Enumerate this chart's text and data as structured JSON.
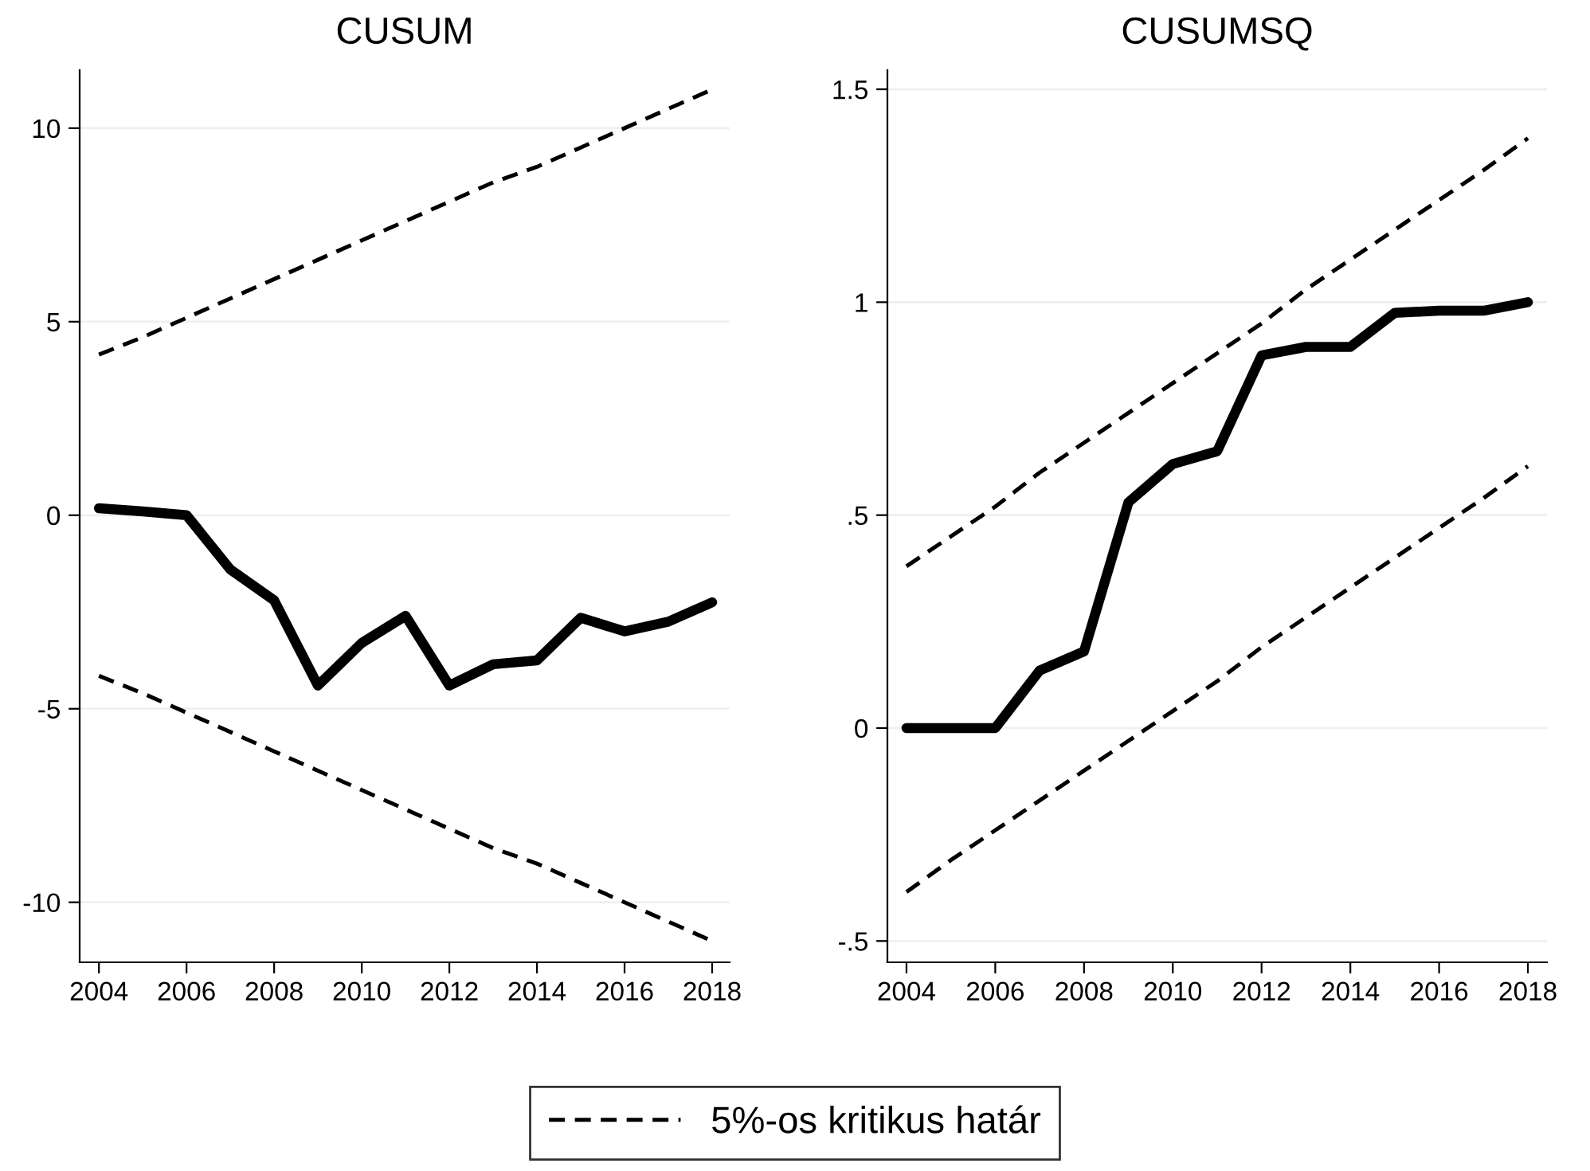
{
  "chart_data": [
    {
      "type": "line",
      "title": "CUSUM",
      "x": [
        2004,
        2005,
        2006,
        2007,
        2008,
        2009,
        2010,
        2011,
        2012,
        2013,
        2014,
        2015,
        2016,
        2017,
        2018
      ],
      "series": [
        {
          "values": [
            0.18,
            0.1,
            0,
            -1.4,
            -2.2,
            -4.4,
            -3.3,
            -2.6,
            -4.4,
            -3.85,
            -3.75,
            -2.65,
            -3.0,
            -2.75,
            -2.25
          ],
          "color": "#000000",
          "line_style": "solid"
        },
        {
          "name": "5%-os kritikus határ",
          "values": [
            4.15,
            4.6,
            5.1,
            5.6,
            6.1,
            6.6,
            7.1,
            7.6,
            8.1,
            8.6,
            9.0,
            9.5,
            10.0,
            10.5,
            11.0
          ],
          "color": "#000000",
          "line_style": "dashed"
        },
        {
          "values": [
            -4.15,
            -4.6,
            -5.1,
            -5.6,
            -6.1,
            -6.6,
            -7.1,
            -7.6,
            -8.1,
            -8.6,
            -9.0,
            -9.5,
            -10.0,
            -10.5,
            -11.0
          ],
          "color": "#000000",
          "line_style": "dashed"
        }
      ],
      "xlim": [
        2003.56,
        2018.4
      ],
      "xticks": [
        2004,
        2006,
        2008,
        2010,
        2012,
        2014,
        2016,
        2018
      ],
      "ylim": [
        -11.55,
        11.5
      ],
      "yticks": [
        -10,
        -5,
        0,
        5,
        10
      ],
      "grid": "y",
      "legend": "bottom",
      "marker": "none"
    },
    {
      "type": "line",
      "title": "CUSUMSQ",
      "x": [
        2004,
        2005,
        2006,
        2007,
        2008,
        2009,
        2010,
        2011,
        2012,
        2013,
        2014,
        2015,
        2016,
        2017,
        2018
      ],
      "series": [
        {
          "values": [
            0,
            0,
            0,
            0.135,
            0.18,
            0.53,
            0.62,
            0.65,
            0.875,
            0.895,
            0.895,
            0.975,
            0.98,
            0.98,
            1.0
          ],
          "color": "#000000",
          "line_style": "solid"
        },
        {
          "values": [
            0.38,
            0.45,
            0.52,
            0.6,
            0.67,
            0.74,
            0.81,
            0.88,
            0.95,
            1.03,
            1.1,
            1.17,
            1.24,
            1.31,
            1.385
          ],
          "color": "#000000",
          "line_style": "dashed"
        },
        {
          "values": [
            -0.385,
            -0.31,
            -0.24,
            -0.17,
            -0.1,
            -0.03,
            0.04,
            0.11,
            0.19,
            0.26,
            0.33,
            0.4,
            0.47,
            0.54,
            0.615
          ],
          "color": "#000000",
          "line_style": "dashed"
        }
      ],
      "xlim": [
        2003.57,
        2018.43
      ],
      "xticks": [
        2004,
        2006,
        2008,
        2010,
        2012,
        2014,
        2016,
        2018
      ],
      "ylim": [
        -0.55,
        1.545
      ],
      "yticks": [
        {
          "value": -0.5,
          "label": "-.5"
        },
        0,
        {
          "value": 0.5,
          "label": ".5"
        },
        1,
        1.5
      ],
      "grid": "y",
      "legend": "bottom",
      "marker": "none"
    }
  ]
}
